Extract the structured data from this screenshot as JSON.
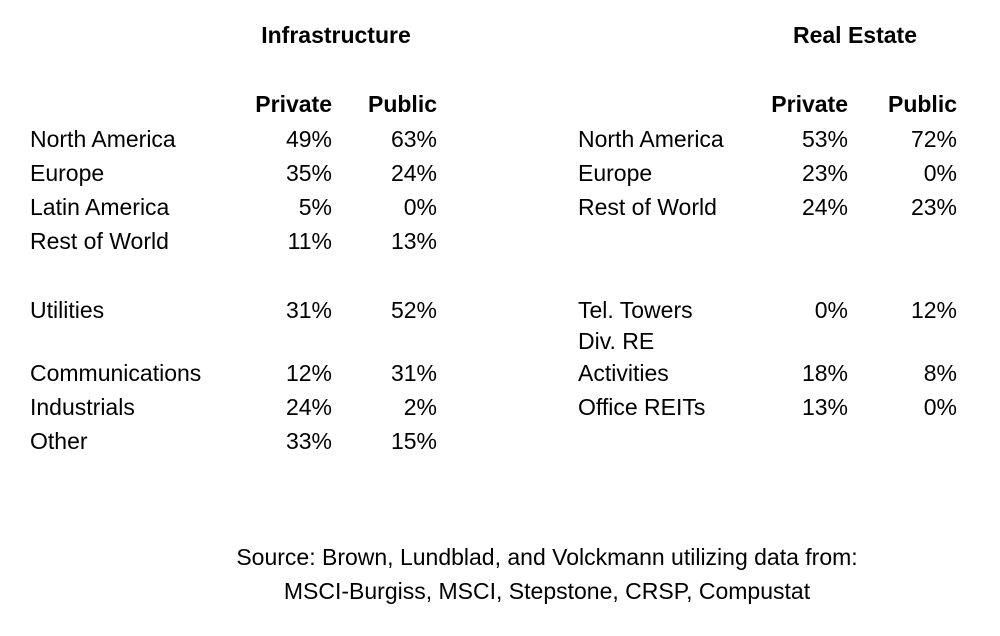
{
  "chart_data": [
    {
      "type": "table",
      "title": "Infrastructure",
      "columns": [
        "",
        "Private",
        "Public"
      ],
      "rows": [
        [
          "North America",
          "49%",
          "63%"
        ],
        [
          "Europe",
          "35%",
          "24%"
        ],
        [
          "Latin America",
          "5%",
          "0%"
        ],
        [
          "Rest of World",
          "11%",
          "13%"
        ],
        [
          "",
          "",
          ""
        ],
        [
          "Utilities",
          "31%",
          "52%"
        ],
        [
          "",
          "",
          ""
        ],
        [
          "Communications",
          "12%",
          "31%"
        ],
        [
          "Industrials",
          "24%",
          "2%"
        ],
        [
          "Other",
          "33%",
          "15%"
        ]
      ]
    },
    {
      "type": "table",
      "title": "Real Estate",
      "columns": [
        "",
        "Private",
        "Public"
      ],
      "rows": [
        [
          "North America",
          "53%",
          "72%"
        ],
        [
          "Europe",
          "23%",
          "0%"
        ],
        [
          "Rest of World",
          "24%",
          "23%"
        ],
        [
          "",
          "",
          ""
        ],
        [
          "",
          "",
          ""
        ],
        [
          "Tel. Towers",
          "0%",
          "12%"
        ],
        [
          "Div. RE",
          "",
          ""
        ],
        [
          "Activities",
          "18%",
          "8%"
        ],
        [
          "Office REITs",
          "13%",
          "0%"
        ],
        [
          "",
          "",
          ""
        ]
      ]
    }
  ],
  "source": {
    "line1": "Source: Brown, Lundblad, and Volckmann utilizing data from:",
    "line2": "MSCI-Burgiss, MSCI, Stepstone, CRSP, Compustat"
  },
  "colors": {
    "background": "#ffffff",
    "text": "#000000"
  }
}
